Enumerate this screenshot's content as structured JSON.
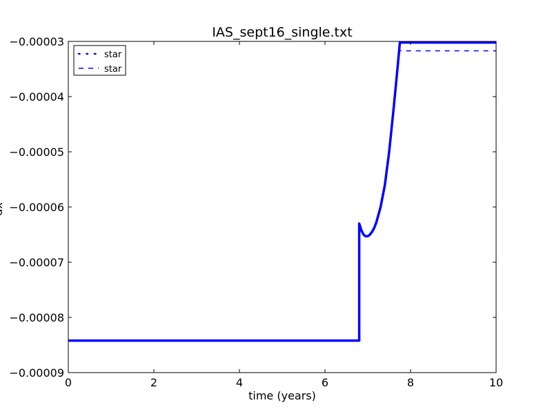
{
  "chart_data": {
    "type": "line",
    "title": "IAS_sept16_single.txt",
    "xlabel": "time (years)",
    "ylabel": "dx",
    "xlim": [
      0,
      10
    ],
    "ylim": [
      -9e-05,
      -3e-05
    ],
    "x_ticks": [
      0,
      2,
      4,
      6,
      8,
      10
    ],
    "x_tick_labels": [
      "0",
      "2",
      "4",
      "6",
      "8",
      "10"
    ],
    "y_ticks": [
      -9e-05,
      -8e-05,
      -7e-05,
      -6e-05,
      -5e-05,
      -4e-05,
      -3e-05
    ],
    "y_tick_labels": [
      "−0.00009",
      "−0.00008",
      "−0.00007",
      "−0.00006",
      "−0.00005",
      "−0.00004",
      "−0.00003"
    ],
    "grid": false,
    "legend_position": "top-left",
    "series": [
      {
        "name": "star",
        "style": "dotted",
        "color": "#0000ff",
        "x": [
          0.0,
          6.8,
          6.8,
          6.85,
          6.9,
          6.95,
          7.0,
          7.05,
          7.1,
          7.15,
          7.2,
          7.3,
          7.4,
          7.5,
          7.6,
          7.7,
          7.75,
          8.0,
          8.5,
          9.0,
          9.5,
          10.0
        ],
        "y": [
          -8.42e-05,
          -8.42e-05,
          -6.3e-05,
          -6.42e-05,
          -6.5e-05,
          -6.53e-05,
          -6.53e-05,
          -6.5e-05,
          -6.45e-05,
          -6.38e-05,
          -6.28e-05,
          -6e-05,
          -5.6e-05,
          -5e-05,
          -4.25e-05,
          -3.45e-05,
          -3.02e-05,
          -3.02e-05,
          -3.02e-05,
          -3.02e-05,
          -3.02e-05,
          -3.02e-05
        ]
      },
      {
        "name": "star",
        "style": "dashed",
        "color": "#0000ff",
        "x": [
          0.0,
          6.8,
          6.8,
          6.85,
          6.9,
          6.95,
          7.0,
          7.05,
          7.1,
          7.15,
          7.2,
          7.3,
          7.4,
          7.5,
          7.6,
          7.7,
          7.75,
          7.75,
          8.0,
          8.5,
          9.0,
          9.5,
          10.0
        ],
        "y": [
          -8.42e-05,
          -8.42e-05,
          -6.3e-05,
          -6.42e-05,
          -6.5e-05,
          -6.53e-05,
          -6.53e-05,
          -6.5e-05,
          -6.45e-05,
          -6.38e-05,
          -6.28e-05,
          -6e-05,
          -5.6e-05,
          -5e-05,
          -4.25e-05,
          -3.45e-05,
          -3.02e-05,
          -3.17e-05,
          -3.17e-05,
          -3.17e-05,
          -3.17e-05,
          -3.17e-05,
          -3.17e-05
        ]
      }
    ]
  }
}
